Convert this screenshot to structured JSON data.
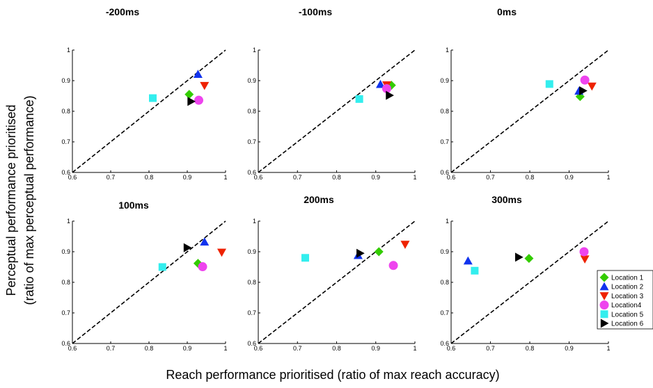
{
  "figure": {
    "ylabel_line1": "Perceptual performance prioritised",
    "ylabel_line2": "(ratio of max perceptual performance)",
    "xlabel": "Reach performance prioritised (ratio of max reach accuracy)"
  },
  "legend": [
    {
      "label": "Location 1",
      "color": "#33cc00",
      "marker": "diamond"
    },
    {
      "label": "Location 2",
      "color": "#1133ee",
      "marker": "triangle-up"
    },
    {
      "label": "Location 3",
      "color": "#ee2200",
      "marker": "triangle-down"
    },
    {
      "label": "Location4",
      "color": "#ee44ee",
      "marker": "circle"
    },
    {
      "label": "Location 5",
      "color": "#33eeee",
      "marker": "square"
    },
    {
      "label": "Location 6",
      "color": "#000000",
      "marker": "triangle-right"
    }
  ],
  "chart_data": [
    {
      "type": "scatter",
      "title": "-200ms",
      "xlim": [
        0.6,
        1
      ],
      "ylim": [
        0.6,
        1
      ],
      "xticks": [
        "0.6",
        "0.7",
        "0.8",
        "0.9",
        "1"
      ],
      "yticks": [
        "0.6",
        "0.7",
        "0.8",
        "0.9",
        "1"
      ],
      "reference_line": "y = x (dashed)",
      "points": [
        [
          0.905,
          0.855
        ],
        [
          0.928,
          0.921
        ],
        [
          0.945,
          0.884
        ],
        [
          0.93,
          0.836
        ],
        [
          0.81,
          0.843
        ],
        [
          0.91,
          0.832
        ]
      ]
    },
    {
      "type": "scatter",
      "title": "-100ms",
      "xlim": [
        0.6,
        1
      ],
      "ylim": [
        0.6,
        1
      ],
      "xticks": [
        "0.6",
        "0.7",
        "0.8",
        "0.9",
        "1"
      ],
      "yticks": [
        "0.6",
        "0.7",
        "0.8",
        "0.9",
        "1"
      ],
      "reference_line": "y = x (dashed)",
      "points": [
        [
          0.94,
          0.885
        ],
        [
          0.912,
          0.888
        ],
        [
          0.928,
          0.886
        ],
        [
          0.928,
          0.874
        ],
        [
          0.858,
          0.84
        ],
        [
          0.935,
          0.852
        ]
      ]
    },
    {
      "type": "scatter",
      "title": "0ms",
      "xlim": [
        0.6,
        1
      ],
      "ylim": [
        0.6,
        1
      ],
      "xticks": [
        "0.6",
        "0.7",
        "0.8",
        "0.9",
        "1"
      ],
      "yticks": [
        "0.6",
        "0.7",
        "0.8",
        "0.9",
        "1"
      ],
      "reference_line": "y = x (dashed)",
      "points": [
        [
          0.928,
          0.848
        ],
        [
          0.925,
          0.866
        ],
        [
          0.958,
          0.882
        ],
        [
          0.94,
          0.902
        ],
        [
          0.85,
          0.889
        ],
        [
          0.935,
          0.867
        ]
      ]
    },
    {
      "type": "scatter",
      "title": "100ms",
      "xlim": [
        0.6,
        1
      ],
      "ylim": [
        0.6,
        1
      ],
      "xticks": [
        "0.6",
        "0.7",
        "0.8",
        "0.9",
        "1"
      ],
      "yticks": [
        "0.6",
        "0.7",
        "0.8",
        "0.9",
        "1"
      ],
      "reference_line": "y = x (dashed)",
      "points": [
        [
          0.928,
          0.862
        ],
        [
          0.945,
          0.932
        ],
        [
          0.99,
          0.898
        ],
        [
          0.94,
          0.851
        ],
        [
          0.835,
          0.85
        ],
        [
          0.9,
          0.913
        ]
      ]
    },
    {
      "type": "scatter",
      "title": "200ms",
      "xlim": [
        0.6,
        1
      ],
      "ylim": [
        0.6,
        1
      ],
      "xticks": [
        "0.6",
        "0.7",
        "0.8",
        "0.9",
        "1"
      ],
      "yticks": [
        "0.6",
        "0.7",
        "0.8",
        "0.9",
        "1"
      ],
      "reference_line": "y = x (dashed)",
      "points": [
        [
          0.908,
          0.9
        ],
        [
          0.855,
          0.888
        ],
        [
          0.975,
          0.924
        ],
        [
          0.945,
          0.855
        ],
        [
          0.72,
          0.88
        ],
        [
          0.86,
          0.895
        ]
      ]
    },
    {
      "type": "scatter",
      "title": "300ms",
      "xlim": [
        0.6,
        1
      ],
      "ylim": [
        0.6,
        1
      ],
      "xticks": [
        "0.6",
        "0.7",
        "0.8",
        "0.9",
        "1"
      ],
      "yticks": [
        "0.6",
        "0.7",
        "0.8",
        "0.9",
        "1"
      ],
      "reference_line": "y = x (dashed)",
      "points": [
        [
          0.798,
          0.878
        ],
        [
          0.643,
          0.87
        ],
        [
          0.94,
          0.876
        ],
        [
          0.938,
          0.9
        ],
        [
          0.66,
          0.838
        ],
        [
          0.772,
          0.882
        ]
      ]
    }
  ]
}
